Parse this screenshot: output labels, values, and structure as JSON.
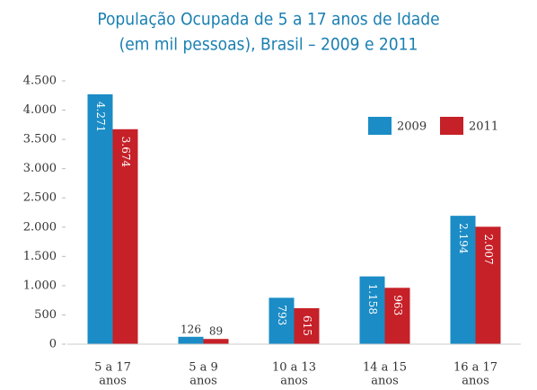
{
  "chart_data": {
    "type": "bar",
    "title": [
      "População Ocupada de 5 a 17 anos de Idade",
      "(em mil pessoas), Brasil – 2009 e 2011"
    ],
    "categories": [
      [
        "5 a 17",
        "anos"
      ],
      [
        "5 a 9",
        "anos"
      ],
      [
        "10 a 13",
        "anos"
      ],
      [
        "14 a 15",
        "anos"
      ],
      [
        "16 a 17",
        "anos"
      ]
    ],
    "series": [
      {
        "name": "2009",
        "color": "#1b8cc6",
        "values": [
          4271,
          126,
          793,
          1158,
          2194
        ],
        "value_labels": [
          "4.271",
          "126",
          "793",
          "1.158",
          "2.194"
        ]
      },
      {
        "name": "2011",
        "color": "#c62028",
        "values": [
          3674,
          89,
          615,
          963,
          2007
        ],
        "value_labels": [
          "3.674",
          "89",
          "615",
          "963",
          "2.007"
        ]
      }
    ],
    "ylim": [
      0,
      4500
    ],
    "yticks": [
      0,
      500,
      {
        "value": 1000,
        "label": "1.000"
      },
      {
        "value": 1500,
        "label": "1.500"
      },
      {
        "value": 2000,
        "label": "2.000"
      },
      {
        "value": 2500,
        "label": "2.500"
      },
      {
        "value": 3000,
        "label": "3.000"
      },
      {
        "value": 3500,
        "label": "3.500"
      },
      {
        "value": 4000,
        "label": "4.000"
      },
      {
        "value": 4500,
        "label": "4.500"
      }
    ],
    "grid": false,
    "legend": "top-right"
  }
}
